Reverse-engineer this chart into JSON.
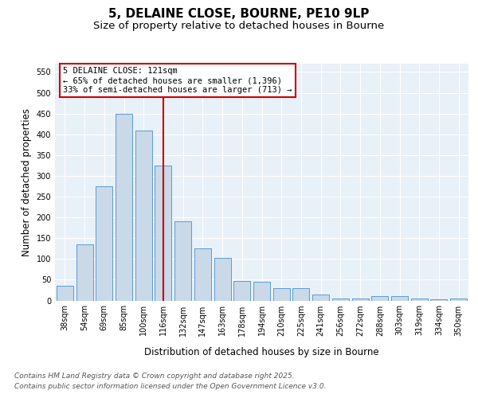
{
  "title_line1": "5, DELAINE CLOSE, BOURNE, PE10 9LP",
  "title_line2": "Size of property relative to detached houses in Bourne",
  "xlabel": "Distribution of detached houses by size in Bourne",
  "ylabel": "Number of detached properties",
  "categories": [
    "38sqm",
    "54sqm",
    "69sqm",
    "85sqm",
    "100sqm",
    "116sqm",
    "132sqm",
    "147sqm",
    "163sqm",
    "178sqm",
    "194sqm",
    "210sqm",
    "225sqm",
    "241sqm",
    "256sqm",
    "272sqm",
    "288sqm",
    "303sqm",
    "319sqm",
    "334sqm",
    "350sqm"
  ],
  "values": [
    35,
    135,
    275,
    450,
    410,
    325,
    190,
    125,
    103,
    46,
    45,
    30,
    30,
    15,
    5,
    5,
    10,
    10,
    5,
    3,
    5
  ],
  "bar_color": "#c9d9e8",
  "bar_edge_color": "#5b9bd5",
  "vline_x": 5,
  "vline_color": "#cc0000",
  "annotation_line1": "5 DELAINE CLOSE: 121sqm",
  "annotation_line2": "← 65% of detached houses are smaller (1,396)",
  "annotation_line3": "33% of semi-detached houses are larger (713) →",
  "annotation_box_color": "#ffffff",
  "annotation_box_edge": "#cc0000",
  "ylim": [
    0,
    570
  ],
  "yticks": [
    0,
    50,
    100,
    150,
    200,
    250,
    300,
    350,
    400,
    450,
    500,
    550
  ],
  "plot_bg": "#e8f0f8",
  "footer_line1": "Contains HM Land Registry data © Crown copyright and database right 2025.",
  "footer_line2": "Contains public sector information licensed under the Open Government Licence v3.0.",
  "title_fontsize": 11,
  "subtitle_fontsize": 9.5,
  "label_fontsize": 8.5,
  "tick_fontsize": 7,
  "annot_fontsize": 7.5,
  "footer_fontsize": 6.5
}
